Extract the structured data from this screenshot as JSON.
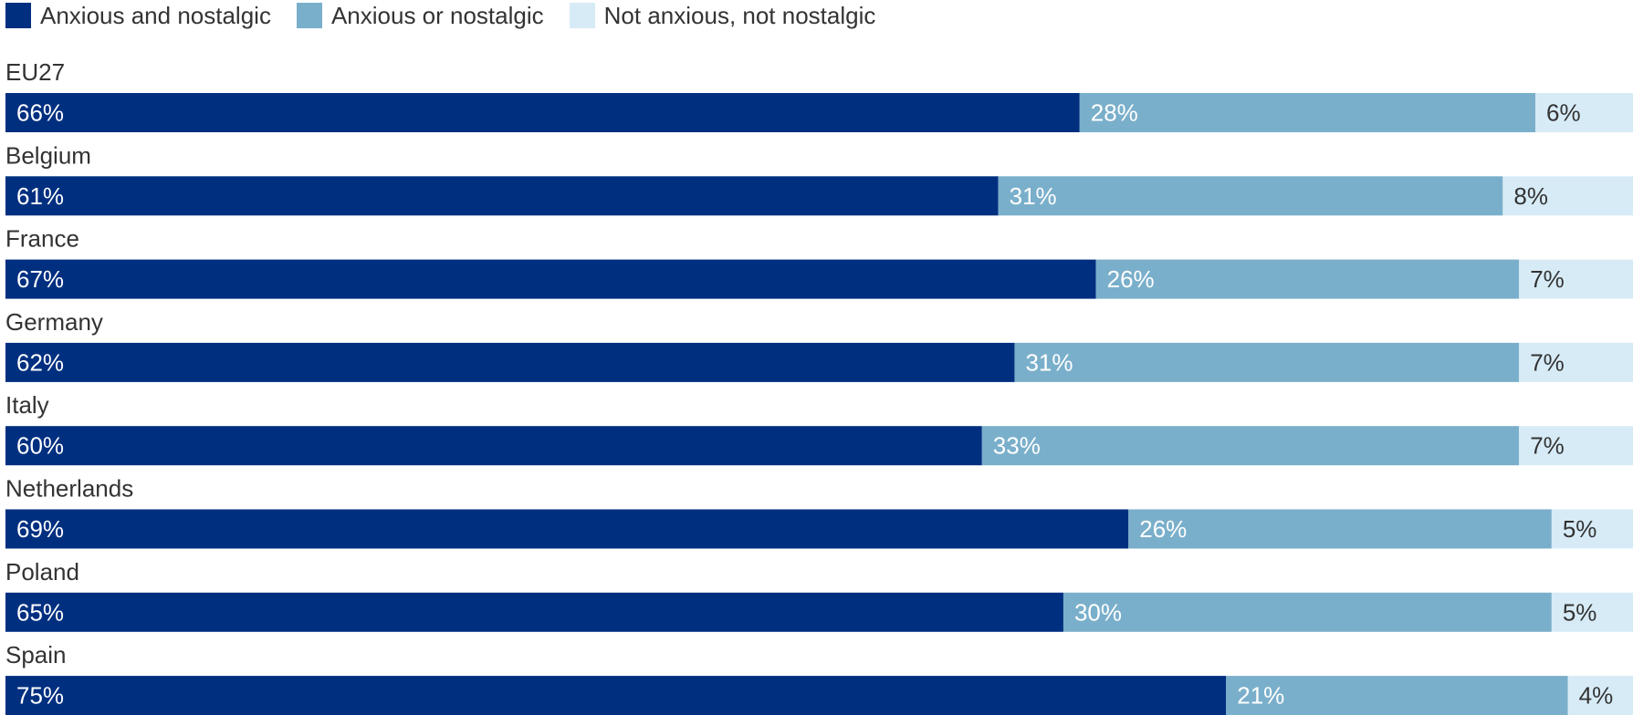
{
  "chart_data": {
    "type": "bar",
    "orientation": "horizontal",
    "stacked": true,
    "categories": [
      "EU27",
      "Belgium",
      "France",
      "Germany",
      "Italy",
      "Netherlands",
      "Poland",
      "Spain"
    ],
    "series": [
      {
        "name": "Anxious and nostalgic",
        "color": "#002f80",
        "values": [
          66,
          61,
          67,
          62,
          60,
          69,
          65,
          75
        ],
        "labels": [
          "66%",
          "61%",
          "67%",
          "62%",
          "60%",
          "69%",
          "65%",
          "75%"
        ]
      },
      {
        "name": "Anxious or nostalgic",
        "color": "#7aafcb",
        "values": [
          28,
          31,
          26,
          31,
          33,
          26,
          30,
          21
        ],
        "labels": [
          "28%",
          "31%",
          "26%",
          "31%",
          "33%",
          "26%",
          "30%",
          "21%"
        ]
      },
      {
        "name": "Not anxious, not nostalgic",
        "color": "#d7ebf7",
        "values": [
          6,
          8,
          7,
          7,
          7,
          5,
          5,
          4
        ],
        "labels": [
          "6%",
          "8%",
          "7%",
          "7%",
          "7%",
          "5%",
          "5%",
          "4%"
        ]
      }
    ],
    "xlim": [
      0,
      100
    ],
    "legend": "top-left",
    "grid": false,
    "label_colors": [
      "#ffffff",
      "#ffffff",
      "#333333"
    ]
  }
}
